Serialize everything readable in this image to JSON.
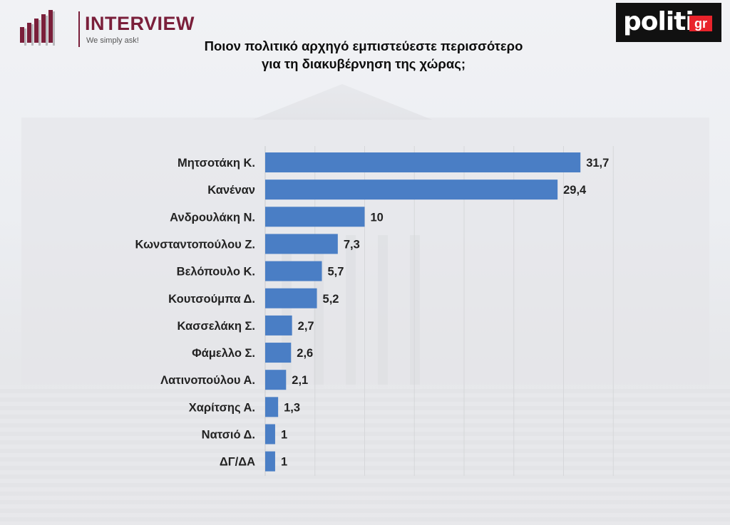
{
  "header": {
    "brand_left": "INTERVIEW",
    "brand_left_tagline": "We simply ask!",
    "brand_right": "politic",
    "brand_right_badge": "gr"
  },
  "chart_data": {
    "type": "bar",
    "orientation": "horizontal",
    "title_line1": "Ποιον πολιτικό αρχηγό εμπιστεύεστε περισσότερο",
    "title_line2": "για τη διακυβέρνηση της χώρας;",
    "categories": [
      "Μητσοτάκη Κ.",
      "Κανέναν",
      "Ανδρουλάκη Ν.",
      "Κωνσταντοπούλου Ζ.",
      "Βελόπουλο Κ.",
      "Κουτσούμπα Δ.",
      "Κασσελάκη Σ.",
      "Φάμελλο Σ.",
      "Λατινοπούλου Α.",
      "Χαρίτσης Α.",
      "Νατσιό Δ.",
      "ΔΓ/ΔΑ"
    ],
    "values": [
      31.7,
      29.4,
      10,
      7.3,
      5.7,
      5.2,
      2.7,
      2.6,
      2.1,
      1.3,
      1,
      1
    ],
    "value_labels": [
      "31,7",
      "29,4",
      "10",
      "7,3",
      "5,7",
      "5,2",
      "2,7",
      "2,6",
      "2,1",
      "1,3",
      "1",
      "1"
    ],
    "xlim": [
      0,
      35
    ],
    "grid": true,
    "bar_color": "#4a7ec5"
  }
}
